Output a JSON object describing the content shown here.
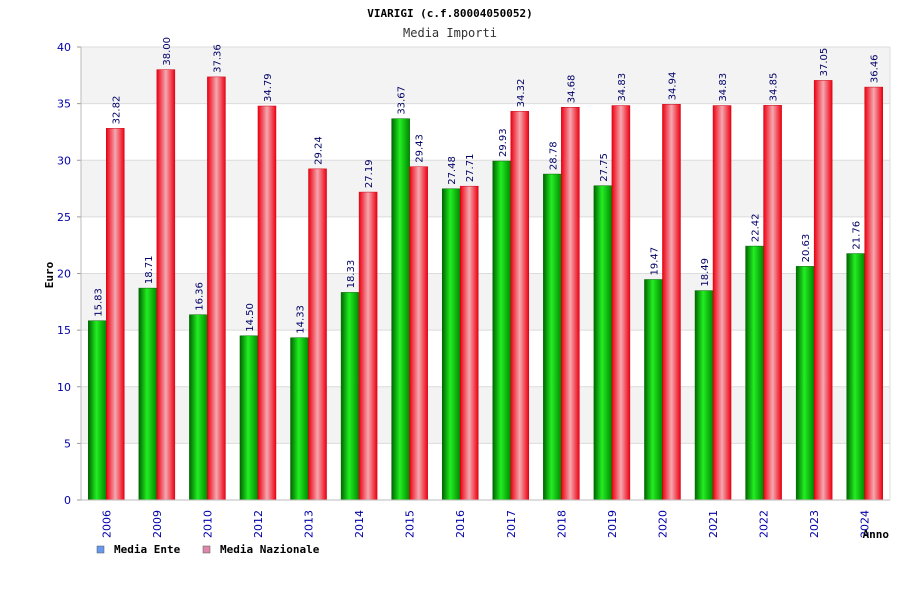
{
  "chart_data": {
    "type": "bar",
    "title": "VIARIGI (c.f.80004050052)",
    "subtitle": "Media Importi",
    "ylabel": "Euro",
    "xlabel": "Anno",
    "ylim": [
      0,
      40
    ],
    "yticks": [
      0,
      5,
      10,
      15,
      20,
      25,
      30,
      35,
      40
    ],
    "grid": true,
    "legend_position": "bottom-left",
    "categories": [
      "2006",
      "2009",
      "2010",
      "2012",
      "2013",
      "2014",
      "2015",
      "2016",
      "2017",
      "2018",
      "2019",
      "2020",
      "2021",
      "2022",
      "2023",
      "2024"
    ],
    "series": [
      {
        "name": "Media Ente",
        "color": "#00cc00",
        "legend_color": "#6699ee",
        "values": [
          15.83,
          18.71,
          16.36,
          14.5,
          14.33,
          18.33,
          33.67,
          27.48,
          29.93,
          28.78,
          27.75,
          19.47,
          18.49,
          22.42,
          20.63,
          21.76
        ]
      },
      {
        "name": "Media Nazionale",
        "color": "#ee1122",
        "legend_color": "#dd88aa",
        "values": [
          32.82,
          38.0,
          37.36,
          34.79,
          29.24,
          27.19,
          29.43,
          27.71,
          34.32,
          34.68,
          34.83,
          34.94,
          34.83,
          34.85,
          37.05,
          36.46
        ]
      }
    ]
  }
}
